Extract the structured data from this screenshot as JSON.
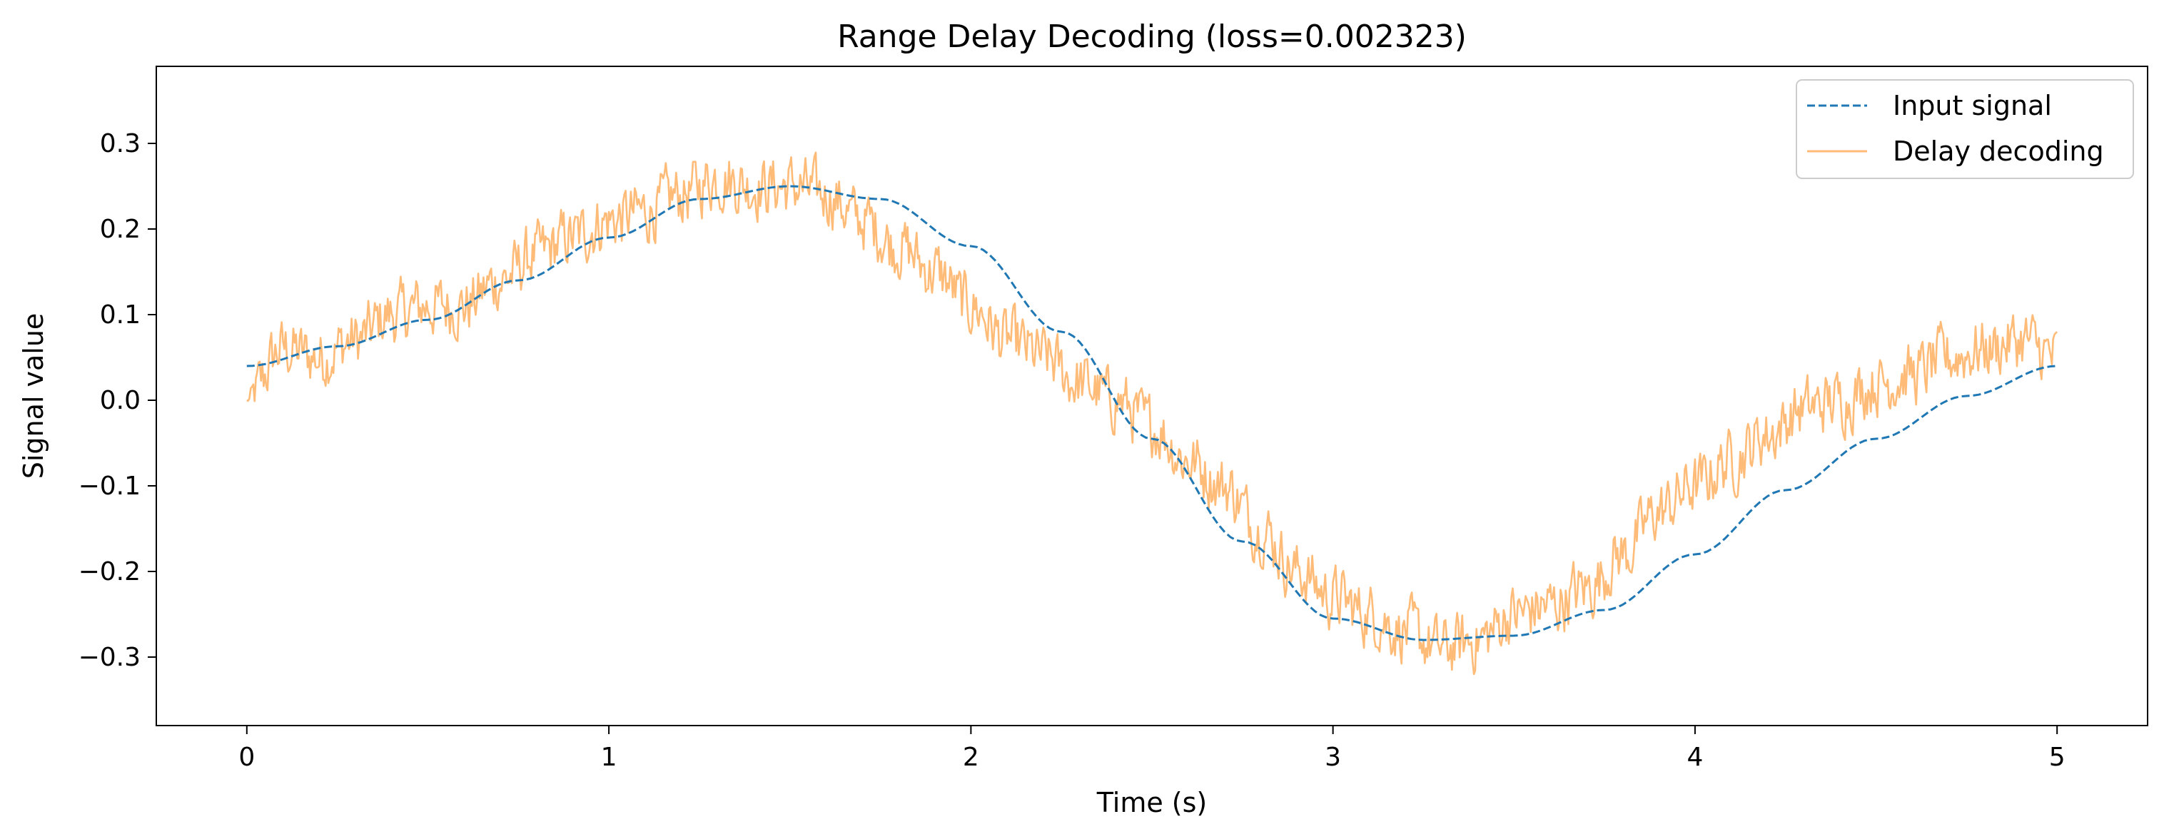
{
  "chart_data": {
    "type": "line",
    "title": "Range Delay Decoding (loss=0.002323)",
    "xlabel": "Time (s)",
    "ylabel": "Signal value",
    "xlim": [
      -0.25,
      5.25
    ],
    "ylim": [
      -0.38,
      0.39
    ],
    "x_ticks": [
      0,
      1,
      2,
      3,
      4,
      5
    ],
    "x_tick_labels": [
      "0",
      "1",
      "2",
      "3",
      "4",
      "5"
    ],
    "y_ticks": [
      -0.3,
      -0.2,
      -0.1,
      0.0,
      0.1,
      0.2,
      0.3
    ],
    "y_tick_labels": [
      "−0.3",
      "−0.2",
      "−0.1",
      "0.0",
      "0.1",
      "0.2",
      "0.3"
    ],
    "grid": false,
    "legend_position": "top-right",
    "series": [
      {
        "name": "Input signal",
        "style": "dashed",
        "color": "#1f77b4",
        "x": [
          0.0,
          0.25,
          0.5,
          0.75,
          1.0,
          1.25,
          1.5,
          1.75,
          2.0,
          2.25,
          2.5,
          2.75,
          3.0,
          3.25,
          3.5,
          3.75,
          4.0,
          4.25,
          4.5,
          4.75,
          5.0
        ],
        "values": [
          0.04,
          0.063,
          0.094,
          0.14,
          0.19,
          0.235,
          0.25,
          0.235,
          0.18,
          0.08,
          -0.045,
          -0.165,
          -0.255,
          -0.28,
          -0.275,
          -0.245,
          -0.18,
          -0.105,
          -0.045,
          0.005,
          0.04
        ]
      },
      {
        "name": "Delay decoding",
        "style": "solid",
        "color": "#ffbb78",
        "x": [
          0.0,
          0.1,
          0.2,
          0.3,
          0.4,
          0.5,
          0.6,
          0.7,
          0.8,
          0.9,
          1.0,
          1.1,
          1.2,
          1.3,
          1.4,
          1.5,
          1.6,
          1.7,
          1.8,
          1.9,
          2.0,
          2.1,
          2.2,
          2.3,
          2.4,
          2.5,
          2.6,
          2.7,
          2.8,
          2.9,
          3.0,
          3.1,
          3.2,
          3.3,
          3.4,
          3.5,
          3.6,
          3.7,
          3.8,
          3.9,
          4.0,
          4.1,
          4.2,
          4.3,
          4.4,
          4.5,
          4.6,
          4.7,
          4.8,
          4.9,
          5.0
        ],
        "values": [
          0.0,
          0.06,
          0.05,
          0.07,
          0.1,
          0.11,
          0.11,
          0.14,
          0.17,
          0.19,
          0.21,
          0.22,
          0.24,
          0.26,
          0.25,
          0.25,
          0.24,
          0.21,
          0.18,
          0.15,
          0.11,
          0.07,
          0.05,
          0.02,
          0.0,
          -0.03,
          -0.07,
          -0.1,
          -0.15,
          -0.2,
          -0.23,
          -0.25,
          -0.27,
          -0.29,
          -0.28,
          -0.25,
          -0.24,
          -0.22,
          -0.18,
          -0.13,
          -0.1,
          -0.07,
          -0.04,
          -0.01,
          0.0,
          0.02,
          0.03,
          0.05,
          0.06,
          0.07,
          0.05
        ],
        "noise_amplitude": 0.035
      }
    ]
  }
}
